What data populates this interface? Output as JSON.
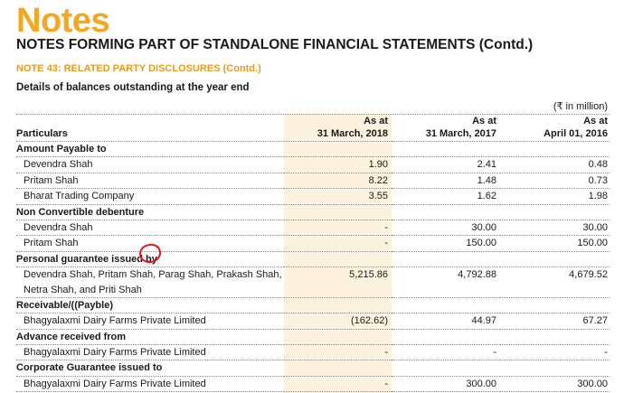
{
  "header": {
    "title": "Notes",
    "subtitle": "NOTES FORMING PART OF STANDALONE FINANCIAL STATEMENTS (Contd.)",
    "note_title": "NOTE 43: RELATED PARTY DISCLOSURES (Contd.)",
    "details": "Details of balances outstanding at the year end"
  },
  "colors": {
    "title": "#f4a71f",
    "note_title": "#e89b16",
    "highlight_column": "#fdf2de",
    "annotation_circle": "#e0141d"
  },
  "table": {
    "unit": "(₹ in million)",
    "columns": {
      "particulars": "Particulars",
      "as_at": "As at",
      "c1": "31 March, 2018",
      "c2": "31 March, 2017",
      "c3": "April 01, 2016"
    },
    "rows": [
      {
        "type": "section",
        "label": "Amount Payable to"
      },
      {
        "type": "item",
        "label": "Devendra Shah",
        "c1": "1.90",
        "c2": "2.41",
        "c3": "0.48"
      },
      {
        "type": "item",
        "label": "Pritam Shah",
        "c1": "8.22",
        "c2": "1.48",
        "c3": "0.73"
      },
      {
        "type": "item",
        "label": "Bharat Trading Company",
        "c1": "3.55",
        "c2": "1.62",
        "c3": "1.98"
      },
      {
        "type": "section",
        "label": "Non Convertible debenture"
      },
      {
        "type": "item",
        "label": "Devendra Shah",
        "c1": "-",
        "c2": "30.00",
        "c3": "30.00"
      },
      {
        "type": "item",
        "label": "Pritam Shah",
        "c1": "-",
        "c2": "150.00",
        "c3": "150.00"
      },
      {
        "type": "section",
        "label": "Personal guarantee issued by"
      },
      {
        "type": "item",
        "label": "Devendra Shah, Pritam Shah, Parag Shah, Prakash Shah,",
        "c1": "5,215.86",
        "c2": "4,792.88",
        "c3": "4,679.52",
        "noline": true
      },
      {
        "type": "item",
        "label": "Netra Shah, and Priti Shah"
      },
      {
        "type": "section",
        "label": "Receivable/((Payble)"
      },
      {
        "type": "item",
        "label": "Bhagyalaxmi Dairy Farms Private Limited",
        "c1": "(162.62)",
        "c2": "44.97",
        "c3": "67.27"
      },
      {
        "type": "section",
        "label": "Advance received from"
      },
      {
        "type": "item",
        "label": "Bhagyalaxmi Dairy Farms Private Limited",
        "c1": "-",
        "c2": "-",
        "c3": "-"
      },
      {
        "type": "section",
        "label": "Corporate Guarantee issued to"
      },
      {
        "type": "item",
        "label": "Bhagyalaxmi Dairy Farms Private Limited",
        "c1": "-",
        "c2": "300.00",
        "c3": "300.00"
      }
    ]
  }
}
